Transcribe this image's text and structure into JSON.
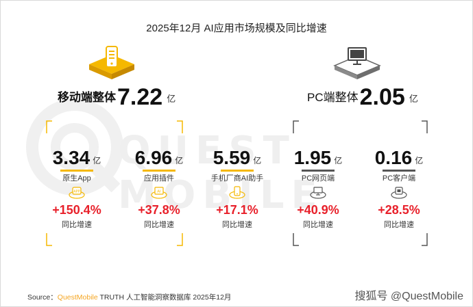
{
  "title": "2025年12月 AI应用市场规模及同比增速",
  "watermark": "QUEST MOBILE",
  "colors": {
    "mobile_accent": "#f5b800",
    "pc_accent": "#555555",
    "growth": "#e8202a"
  },
  "chart_data": {
    "type": "table",
    "title": "2025年12月 AI应用市场规模及同比增速",
    "groups": [
      {
        "label": "移动端整体",
        "value": "7.22",
        "unit": "亿",
        "icon": "smartphone-icon"
      },
      {
        "label": "PC端整体",
        "value": "2.05",
        "unit": "亿",
        "icon": "monitor-icon"
      }
    ],
    "metrics": [
      {
        "name": "原生App",
        "value": "3.34",
        "unit": "亿",
        "growth": "+150.4%",
        "growth_label": "同比增速",
        "group": "mobile",
        "icon": "app-icon"
      },
      {
        "name": "应用插件",
        "value": "6.96",
        "unit": "亿",
        "growth": "+37.8%",
        "growth_label": "同比增速",
        "group": "mobile",
        "icon": "ai-plugin-icon"
      },
      {
        "name": "手机厂商AI助手",
        "value": "5.59",
        "unit": "亿",
        "growth": "+17.1%",
        "growth_label": "同比增速",
        "group": "mobile",
        "icon": "phone-assistant-icon"
      },
      {
        "name": "PC网页端",
        "value": "1.95",
        "unit": "亿",
        "growth": "+40.9%",
        "growth_label": "同比增速",
        "group": "pc",
        "icon": "web-monitor-icon"
      },
      {
        "name": "PC客户端",
        "value": "0.16",
        "unit": "亿",
        "growth": "+28.5%",
        "growth_label": "同比增速",
        "group": "pc",
        "icon": "client-app-icon"
      }
    ]
  },
  "source": {
    "prefix": "Source：",
    "brand": "QuestMobile",
    "rest": " TRUTH 人工智能洞察数据库 2025年12月"
  },
  "credit": "搜狐号 @QuestMobile"
}
